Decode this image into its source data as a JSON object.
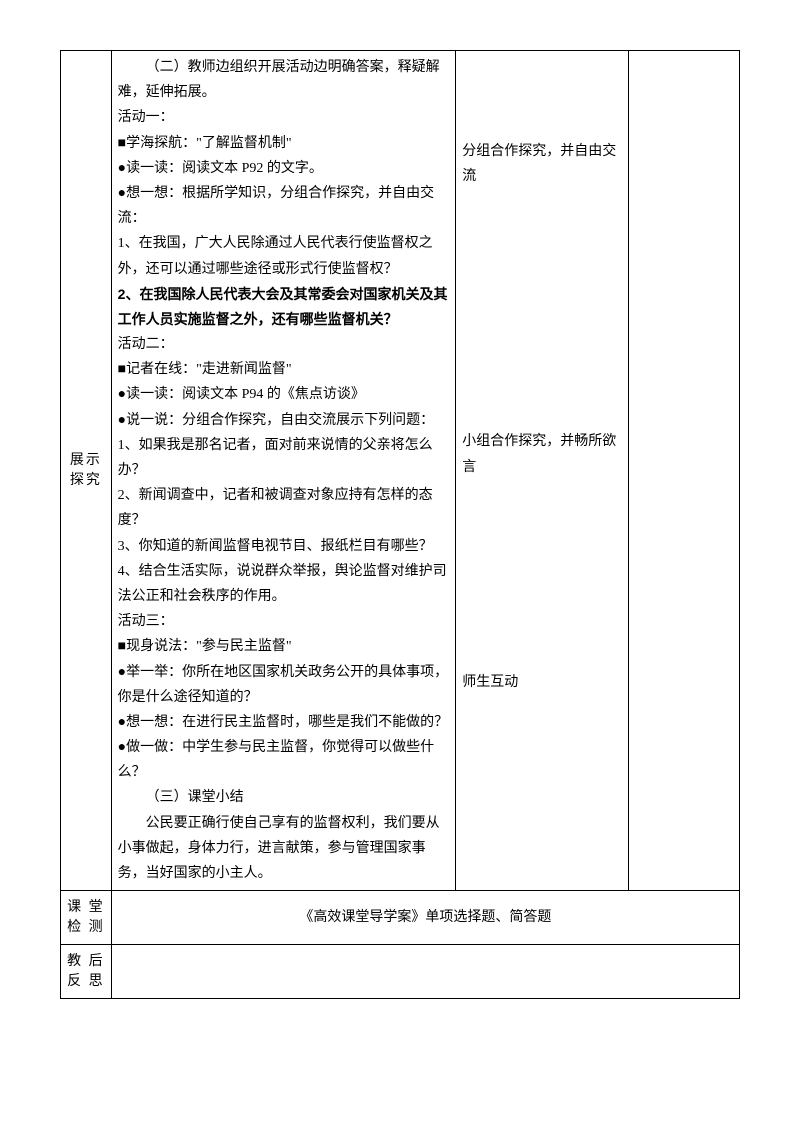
{
  "row1": {
    "label": "展示探究",
    "col2": {
      "intro": "（二）教师边组织开展活动边明确答案，释疑解难，延伸拓展。",
      "act1_title": "活动一：",
      "act1_heading": "■学海探航：\"了解监督机制\"",
      "act1_read": "●读一读：阅读文本 P92 的文字。",
      "act1_think": "●想一想：根据所学知识，分组合作探究，并自由交流：",
      "act1_q1": "1、在我国，广大人民除通过人民代表行使监督权之外，还可以通过哪些途径或形式行使监督权？",
      "act1_q2": "2、在我国除人民代表大会及其常委会对国家机关及其工作人员实施监督之外，还有哪些监督机关？",
      "act2_title": "活动二：",
      "act2_heading": "■记者在线：\"走进新闻监督\"",
      "act2_read": "●读一读：阅读文本 P94 的《焦点访谈》",
      "act2_talk": "●说一说：分组合作探究，自由交流展示下列问题：",
      "act2_q1": "1、如果我是那名记者，面对前来说情的父亲将怎么办？",
      "act2_q2": "2、新闻调查中，记者和被调查对象应持有怎样的态度？",
      "act2_q3": "3、你知道的新闻监督电视节目、报纸栏目有哪些？",
      "act2_q4": "4、结合生活实际，说说群众举报，舆论监督对维护司法公正和社会秩序的作用。",
      "act3_title": "活动三：",
      "act3_heading": "■现身说法：\"参与民主监督\"",
      "act3_list": "●举一举：你所在地区国家机关政务公开的具体事项，你是什么途径知道的？",
      "act3_think": "●想一想：在进行民主监督时，哪些是我们不能做的？",
      "act3_do": "●做一做：中学生参与民主监督，你觉得可以做些什么？",
      "summary_title": "（三）课堂小结",
      "summary_text": "公民要正确行使自己享有的监督权利，我们要从小事做起，身体力行，进言献策，参与管理国家事务，当好国家的小主人。"
    },
    "col3": {
      "note1": "分组合作探究，并自由交流",
      "note2": "小组合作探究，并畅所欲言",
      "note3": "师生互动"
    }
  },
  "row2": {
    "label": "课 堂检 测",
    "content": "《高效课堂导学案》单项选择题、简答题"
  },
  "row3": {
    "label": "教 后反 思"
  }
}
